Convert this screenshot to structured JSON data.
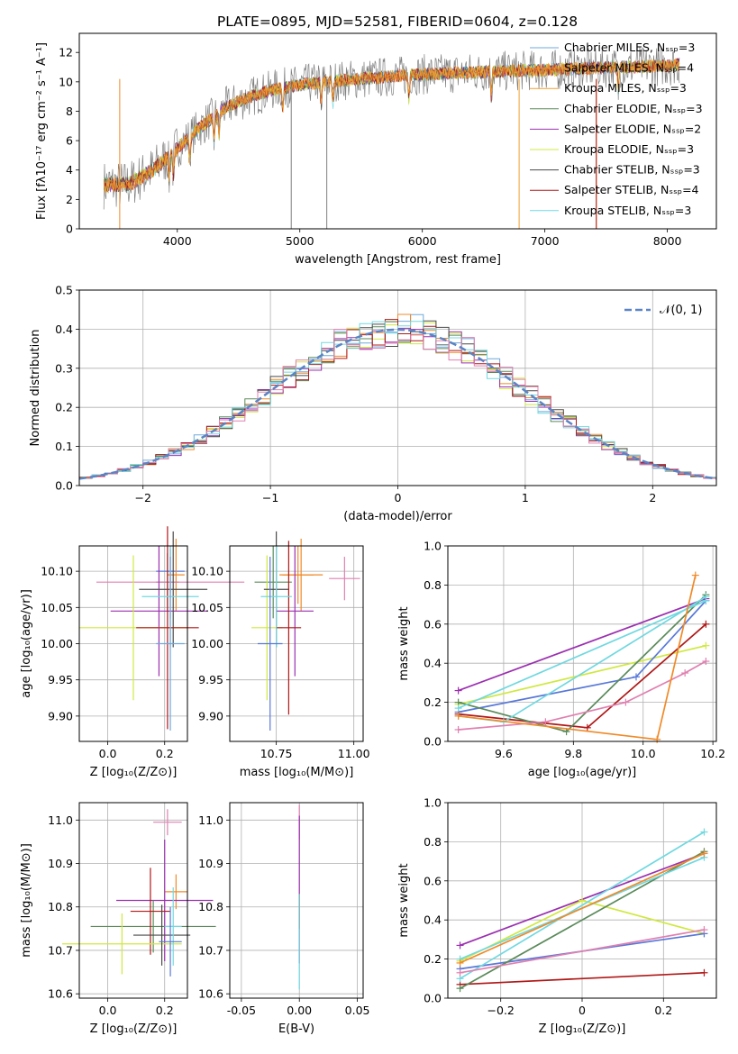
{
  "figure_title": "PLATE=0895, MJD=52581, FIBERID=0604, z=0.128",
  "colors": {
    "chabrier_miles": "#6fa8dc",
    "salpeter_miles": "#f08a28",
    "kroupa_miles": "#f0a030",
    "chabrier_elodie": "#5a8a5a",
    "salpeter_elodie": "#9b30b0",
    "kroupa_elodie": "#d0e840",
    "chabrier_stelib": "#4a4a4a",
    "salpeter_stelib": "#b01818",
    "kroupa_stelib": "#70d8e0",
    "data_gray": "#808080",
    "pink": "#e080b0",
    "blue": "#5878d8",
    "gauss": "#5b84c4"
  },
  "chart_data": [
    {
      "id": "spectrum",
      "type": "line",
      "title": "PLATE=0895, MJD=52581, FIBERID=0604, z=0.128",
      "xlabel": "wavelength [Angstrom, rest frame]",
      "ylabel": "Flux [fλ10⁻¹⁷ erg cm⁻² s⁻¹ A⁻¹]",
      "xlim": [
        3200,
        8400
      ],
      "ylim": [
        0,
        13.3
      ],
      "xticks": [
        4000,
        5000,
        6000,
        7000,
        8000
      ],
      "yticks": [
        0,
        2,
        4,
        6,
        8,
        10,
        12
      ],
      "grid": false,
      "legend_position": "right",
      "legend": [
        "Chabrier MILES, Nₛₛₚ=3",
        "Salpeter MILES, Nₛₛₚ=4",
        "Kroupa MILES, Nₛₛₚ=3",
        "Chabrier ELODIE, Nₛₛₚ=3",
        "Salpeter ELODIE, Nₛₛₚ=2",
        "Kroupa ELODIE, Nₛₛₚ=3",
        "Chabrier STELIB, Nₛₛₚ=3",
        "Salpeter STELIB, Nₛₛₚ=4",
        "Kroupa STELIB, Nₛₛₚ=3"
      ],
      "continuum": {
        "x": [
          3400,
          3600,
          3800,
          4000,
          4200,
          4400,
          4600,
          4800,
          5000,
          5200,
          5500,
          5800,
          6000,
          6300,
          6600,
          7000,
          7300,
          7600,
          8000,
          8100
        ],
        "y": [
          3.0,
          3.0,
          4.0,
          5.5,
          7.0,
          8.3,
          9.0,
          9.5,
          9.8,
          10.0,
          10.2,
          10.4,
          10.5,
          10.6,
          10.7,
          10.8,
          10.9,
          11.0,
          11.1,
          11.2
        ]
      }
    },
    {
      "id": "residuals",
      "type": "bar",
      "xlabel": "(data-model)/error",
      "ylabel": "Normed distribution",
      "xlim": [
        -2.5,
        2.5
      ],
      "ylim": [
        0,
        0.5
      ],
      "xticks": [
        -2,
        -1,
        0,
        1,
        2
      ],
      "yticks": [
        0,
        0.1,
        0.2,
        0.3,
        0.4,
        0.5
      ],
      "grid": true,
      "legend_position": "top-right",
      "legend": [
        "𝒩(0, 1)"
      ],
      "bin_width": 0.1
    },
    {
      "id": "age_vs_z",
      "type": "scatter",
      "xlabel": "Z [log₁₀(Z/Z⊙)]",
      "ylabel": "age  [log₁₀(age/yr)]",
      "xlim": [
        -0.1,
        0.28
      ],
      "ylim": [
        9.865,
        10.135
      ],
      "xticks": [
        0.0,
        0.2
      ],
      "yticks": [
        9.9,
        9.95,
        10.0,
        10.05,
        10.1
      ],
      "grid": true,
      "points": [
        {
          "x": 0.22,
          "y": 10.1,
          "xerr": 0.05,
          "yerr": 0.03
        },
        {
          "x": 0.24,
          "y": 10.095,
          "xerr": 0.03,
          "yerr": 0.05
        },
        {
          "x": 0.21,
          "y": 10.085,
          "xerr": 0.04,
          "yerr": 0.04
        },
        {
          "x": 0.22,
          "y": 10.085,
          "xerr": 0.26,
          "yerr": 0.05
        },
        {
          "x": 0.18,
          "y": 10.045,
          "xerr": 0.17,
          "yerr": 0.09
        },
        {
          "x": 0.09,
          "y": 10.022,
          "xerr": 0.19,
          "yerr": 0.1
        },
        {
          "x": 0.23,
          "y": 10.075,
          "xerr": 0.12,
          "yerr": 0.08
        },
        {
          "x": 0.21,
          "y": 10.022,
          "xerr": 0.11,
          "yerr": 0.14
        },
        {
          "x": 0.22,
          "y": 10.065,
          "xerr": 0.1,
          "yerr": 0.07
        },
        {
          "x": 0.22,
          "y": 10.0,
          "xerr": 0.05,
          "yerr": 0.12
        }
      ]
    },
    {
      "id": "age_vs_mass",
      "type": "scatter",
      "xlabel": "mass [log₁₀(M/M⊙)]",
      "ylabel": "",
      "xlim": [
        10.6,
        11.03
      ],
      "ylim": [
        9.865,
        10.135
      ],
      "xticks": [
        10.75,
        11.0
      ],
      "yticks": [
        9.9,
        9.95,
        10.0,
        10.05,
        10.1
      ],
      "grid": true,
      "points": [
        {
          "x": 10.82,
          "y": 10.095,
          "xerr": 0.05,
          "yerr": 0.04
        },
        {
          "x": 10.83,
          "y": 10.095,
          "xerr": 0.07,
          "yerr": 0.05
        },
        {
          "x": 10.74,
          "y": 10.085,
          "xerr": 0.06,
          "yerr": 0.05
        },
        {
          "x": 10.97,
          "y": 10.09,
          "xerr": 0.05,
          "yerr": 0.03
        },
        {
          "x": 10.81,
          "y": 10.045,
          "xerr": 0.06,
          "yerr": 0.09
        },
        {
          "x": 10.72,
          "y": 10.022,
          "xerr": 0.05,
          "yerr": 0.1
        },
        {
          "x": 10.75,
          "y": 10.075,
          "xerr": 0.04,
          "yerr": 0.08
        },
        {
          "x": 10.79,
          "y": 10.022,
          "xerr": 0.04,
          "yerr": 0.12
        },
        {
          "x": 10.75,
          "y": 10.065,
          "xerr": 0.05,
          "yerr": 0.07
        },
        {
          "x": 10.73,
          "y": 10.0,
          "xerr": 0.04,
          "yerr": 0.12
        }
      ]
    },
    {
      "id": "weight_vs_age",
      "type": "line",
      "xlabel": "age  [log₁₀(age/yr)]",
      "ylabel": "mass weight",
      "xlim": [
        9.44,
        10.21
      ],
      "ylim": [
        0,
        1.0
      ],
      "xticks": [
        9.6,
        9.8,
        10.0,
        10.2
      ],
      "yticks": [
        0,
        0.2,
        0.4,
        0.6,
        0.8,
        1.0
      ],
      "grid": true,
      "series": [
        {
          "x": [
            9.47,
            10.18
          ],
          "y": [
            0.26,
            0.73
          ]
        },
        {
          "x": [
            9.47,
            10.18
          ],
          "y": [
            0.19,
            0.49
          ]
        },
        {
          "x": [
            9.47,
            9.98,
            10.18
          ],
          "y": [
            0.15,
            0.33,
            0.72
          ]
        },
        {
          "x": [
            9.47,
            9.84,
            10.18
          ],
          "y": [
            0.14,
            0.07,
            0.6
          ]
        },
        {
          "x": [
            9.47,
            9.78,
            10.18
          ],
          "y": [
            0.2,
            0.05,
            0.75
          ]
        },
        {
          "x": [
            9.47,
            9.6,
            10.18
          ],
          "y": [
            0.13,
            0.1,
            0.74
          ]
        },
        {
          "x": [
            9.47,
            10.18
          ],
          "y": [
            0.17,
            0.72
          ]
        },
        {
          "x": [
            9.47,
            9.72,
            9.95,
            10.12,
            10.18
          ],
          "y": [
            0.06,
            0.1,
            0.2,
            0.35,
            0.41
          ]
        },
        {
          "x": [
            9.47,
            10.04,
            10.15
          ],
          "y": [
            0.13,
            0.01,
            0.85
          ]
        }
      ]
    },
    {
      "id": "mass_vs_z",
      "type": "scatter",
      "xlabel": "Z [log₁₀(Z/Z⊙)]",
      "ylabel": "mass [log₁₀(M/M⊙)]",
      "xlim": [
        -0.1,
        0.28
      ],
      "ylim": [
        10.59,
        11.04
      ],
      "xticks": [
        0.0,
        0.2
      ],
      "yticks": [
        10.6,
        10.7,
        10.8,
        10.9,
        11.0
      ],
      "grid": true,
      "points": [
        {
          "x": 0.21,
          "y": 10.995,
          "xerr": 0.05,
          "yerr": 0.03
        },
        {
          "x": 0.24,
          "y": 10.835,
          "xerr": 0.04,
          "yerr": 0.04
        },
        {
          "x": 0.2,
          "y": 10.815,
          "xerr": 0.17,
          "yerr": 0.14
        },
        {
          "x": 0.16,
          "y": 10.755,
          "xerr": 0.22,
          "yerr": 0.06
        },
        {
          "x": 0.15,
          "y": 10.79,
          "xerr": 0.07,
          "yerr": 0.1
        },
        {
          "x": 0.05,
          "y": 10.715,
          "xerr": 0.21,
          "yerr": 0.07
        },
        {
          "x": 0.19,
          "y": 10.735,
          "xerr": 0.1,
          "yerr": 0.07
        },
        {
          "x": 0.23,
          "y": 10.755,
          "xerr": 0.03,
          "yerr": 0.09
        },
        {
          "x": 0.22,
          "y": 10.72,
          "xerr": 0.04,
          "yerr": 0.08
        }
      ]
    },
    {
      "id": "mass_vs_ebv",
      "type": "scatter",
      "xlabel": "E(B-V)",
      "ylabel": "",
      "xlim": [
        -0.06,
        0.055
      ],
      "ylim": [
        10.59,
        11.04
      ],
      "xticks": [
        -0.05,
        0.0,
        0.05
      ],
      "yticks": [
        10.6,
        10.7,
        10.8,
        10.9,
        11.0
      ],
      "grid": true,
      "points": [
        {
          "x": 0.0,
          "y": 10.995,
          "xerr": 0,
          "yerr": 0.04
        },
        {
          "x": 0.0,
          "y": 10.84,
          "xerr": 0,
          "yerr": 0.17
        },
        {
          "x": 0.0,
          "y": 10.79,
          "xerr": 0,
          "yerr": 0.04
        },
        {
          "x": 0.0,
          "y": 10.72,
          "xerr": 0,
          "yerr": 0.11
        }
      ]
    },
    {
      "id": "weight_vs_z",
      "type": "line",
      "xlabel": "Z [log₁₀(Z/Z⊙)]",
      "ylabel": "mass weight",
      "xlim": [
        -0.33,
        0.33
      ],
      "ylim": [
        0,
        1.0
      ],
      "xticks": [
        -0.2,
        0.0,
        0.2
      ],
      "yticks": [
        0,
        0.2,
        0.4,
        0.6,
        0.8,
        1.0
      ],
      "grid": true,
      "series": [
        {
          "x": [
            -0.3,
            0.3
          ],
          "y": [
            0.27,
            0.74
          ]
        },
        {
          "x": [
            -0.3,
            0.0,
            0.3
          ],
          "y": [
            0.19,
            0.5,
            0.33
          ]
        },
        {
          "x": [
            -0.3,
            0.3
          ],
          "y": [
            0.15,
            0.33
          ]
        },
        {
          "x": [
            -0.3,
            0.3
          ],
          "y": [
            0.07,
            0.13
          ]
        },
        {
          "x": [
            -0.3,
            0.3
          ],
          "y": [
            0.05,
            0.75
          ]
        },
        {
          "x": [
            -0.3,
            0.3
          ],
          "y": [
            0.1,
            0.85
          ]
        },
        {
          "x": [
            -0.3,
            0.3
          ],
          "y": [
            0.2,
            0.72
          ]
        },
        {
          "x": [
            -0.3,
            0.3
          ],
          "y": [
            0.13,
            0.35
          ]
        },
        {
          "x": [
            -0.3,
            0.3
          ],
          "y": [
            0.18,
            0.74
          ]
        }
      ]
    }
  ]
}
